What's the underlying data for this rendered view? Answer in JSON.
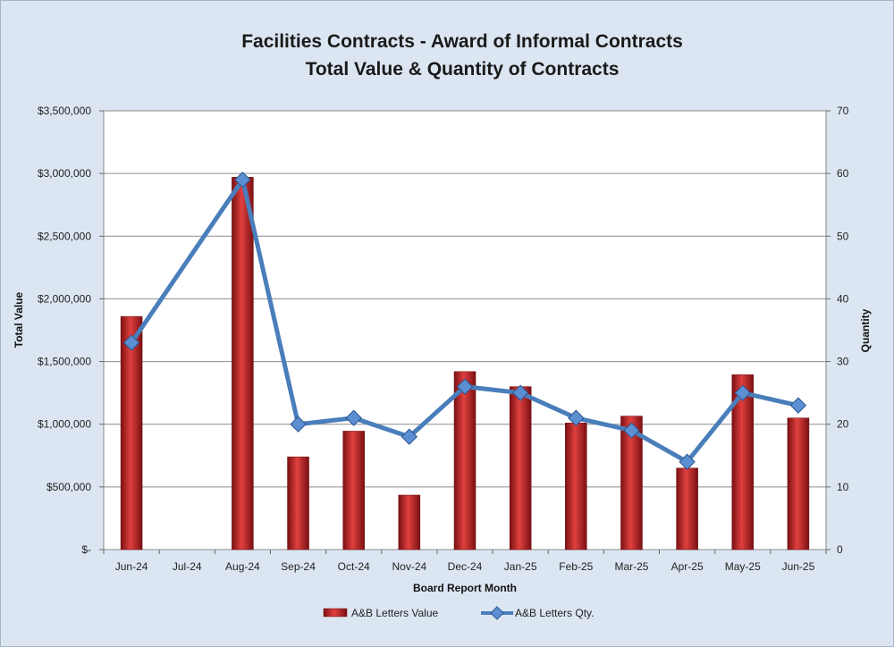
{
  "chart_data": {
    "type": "bar",
    "title": [
      "Facilities Contracts - Award of Informal Contracts",
      "Total Value & Quantity of Contracts"
    ],
    "xlabel": "Board Report Month",
    "ylabel": "Total Value",
    "y2label": "Quantity",
    "categories": [
      "Jun-24",
      "Jul-24",
      "Aug-24",
      "Sep-24",
      "Oct-24",
      "Nov-24",
      "Dec-24",
      "Jan-25",
      "Feb-25",
      "Mar-25",
      "Apr-25",
      "May-25",
      "Jun-25"
    ],
    "ylim": [
      0,
      3500000
    ],
    "y2lim": [
      0,
      70
    ],
    "y_ticks": [
      {
        "value": 0,
        "label": "$-"
      },
      {
        "value": 500000,
        "label": "$500,000"
      },
      {
        "value": 1000000,
        "label": "$1,000,000"
      },
      {
        "value": 1500000,
        "label": "$1,500,000"
      },
      {
        "value": 2000000,
        "label": "$2,000,000"
      },
      {
        "value": 2500000,
        "label": "$2,500,000"
      },
      {
        "value": 3000000,
        "label": "$3,000,000"
      },
      {
        "value": 3500000,
        "label": "$3,500,000"
      }
    ],
    "y2_ticks": [
      0,
      10,
      20,
      30,
      40,
      50,
      60,
      70
    ],
    "grid": true,
    "legend_position": "bottom",
    "series": [
      {
        "name": "A&B Letters Value",
        "type": "bar",
        "axis": "left",
        "color": "#c0282a",
        "values": [
          1860000,
          0,
          2970000,
          740000,
          945000,
          435000,
          1420000,
          1300000,
          1010000,
          1065000,
          650000,
          1395000,
          1050000
        ]
      },
      {
        "name": "A&B Letters Qty.",
        "type": "line",
        "axis": "right",
        "color": "#4a7ebb",
        "values": [
          33,
          null,
          59,
          20,
          21,
          18,
          26,
          25,
          21,
          19,
          14,
          25,
          23
        ]
      }
    ]
  }
}
